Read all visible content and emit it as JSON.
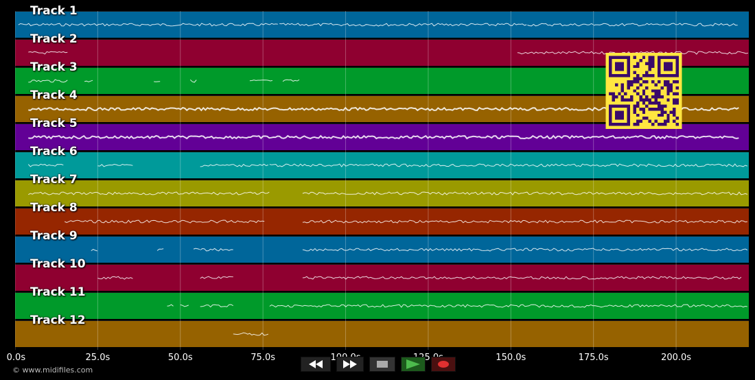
{
  "copyright": "© www.midifiles.com",
  "timeline": {
    "tick_labels": [
      "0.0s",
      "25.0s",
      "50.0s",
      "75.0s",
      "100.0s",
      "125.0s",
      "150.0s",
      "175.0s",
      "200.0s"
    ],
    "tick_values": [
      0,
      25,
      50,
      75,
      100,
      125,
      150,
      175,
      200
    ],
    "max_seconds": 222
  },
  "tracks": [
    {
      "name": "Track 1",
      "color": "#00669a",
      "segments": [
        [
          1,
          80
        ],
        [
          80,
          155
        ],
        [
          155,
          175
        ],
        [
          175,
          219
        ]
      ]
    },
    {
      "name": "Track 2",
      "color": "#8f0030",
      "segments": [
        [
          4,
          16
        ],
        [
          152,
          222
        ]
      ]
    },
    {
      "name": "Track 3",
      "color": "#009a2a",
      "segments": [
        [
          4,
          16
        ],
        [
          21,
          24
        ],
        [
          42,
          44
        ],
        [
          53,
          55
        ],
        [
          71,
          78
        ],
        [
          81,
          86
        ]
      ]
    },
    {
      "name": "Track 4",
      "color": "#966200",
      "segments": [
        [
          4,
          219
        ]
      ]
    },
    {
      "name": "Track 5",
      "color": "#620096",
      "segments": [
        [
          4,
          219
        ]
      ]
    },
    {
      "name": "Track 6",
      "color": "#009a9a",
      "segments": [
        [
          4,
          15
        ],
        [
          25,
          36
        ],
        [
          56,
          66
        ],
        [
          66,
          77
        ],
        [
          77,
          222
        ]
      ]
    },
    {
      "name": "Track 7",
      "color": "#9a9a00",
      "segments": [
        [
          4,
          77
        ],
        [
          87,
          222
        ]
      ]
    },
    {
      "name": "Track 8",
      "color": "#962600",
      "segments": [
        [
          15,
          76
        ],
        [
          87,
          222
        ]
      ]
    },
    {
      "name": "Track 9",
      "color": "#00669a",
      "segments": [
        [
          23,
          25
        ],
        [
          43,
          45
        ],
        [
          54,
          56
        ],
        [
          56,
          66
        ],
        [
          87,
          222
        ]
      ]
    },
    {
      "name": "Track 10",
      "color": "#8f0030",
      "segments": [
        [
          25,
          36
        ],
        [
          56,
          66
        ],
        [
          87,
          220
        ]
      ]
    },
    {
      "name": "Track 11",
      "color": "#009a2a",
      "segments": [
        [
          46,
          48
        ],
        [
          50,
          53
        ],
        [
          56,
          66
        ],
        [
          77,
          222
        ]
      ]
    },
    {
      "name": "Track 12",
      "color": "#966200",
      "segments": [
        [
          66,
          77
        ]
      ]
    }
  ],
  "transport": {
    "rewind": "rewind-icon",
    "fast_forward": "fast-forward-icon",
    "stop": "stop-icon",
    "play": "play-icon",
    "record": "record-icon",
    "play_color": "#4dbb4d",
    "record_color": "#e03030"
  },
  "qr": {
    "fg": "#3a0a6a",
    "bg": "#ffe640"
  }
}
